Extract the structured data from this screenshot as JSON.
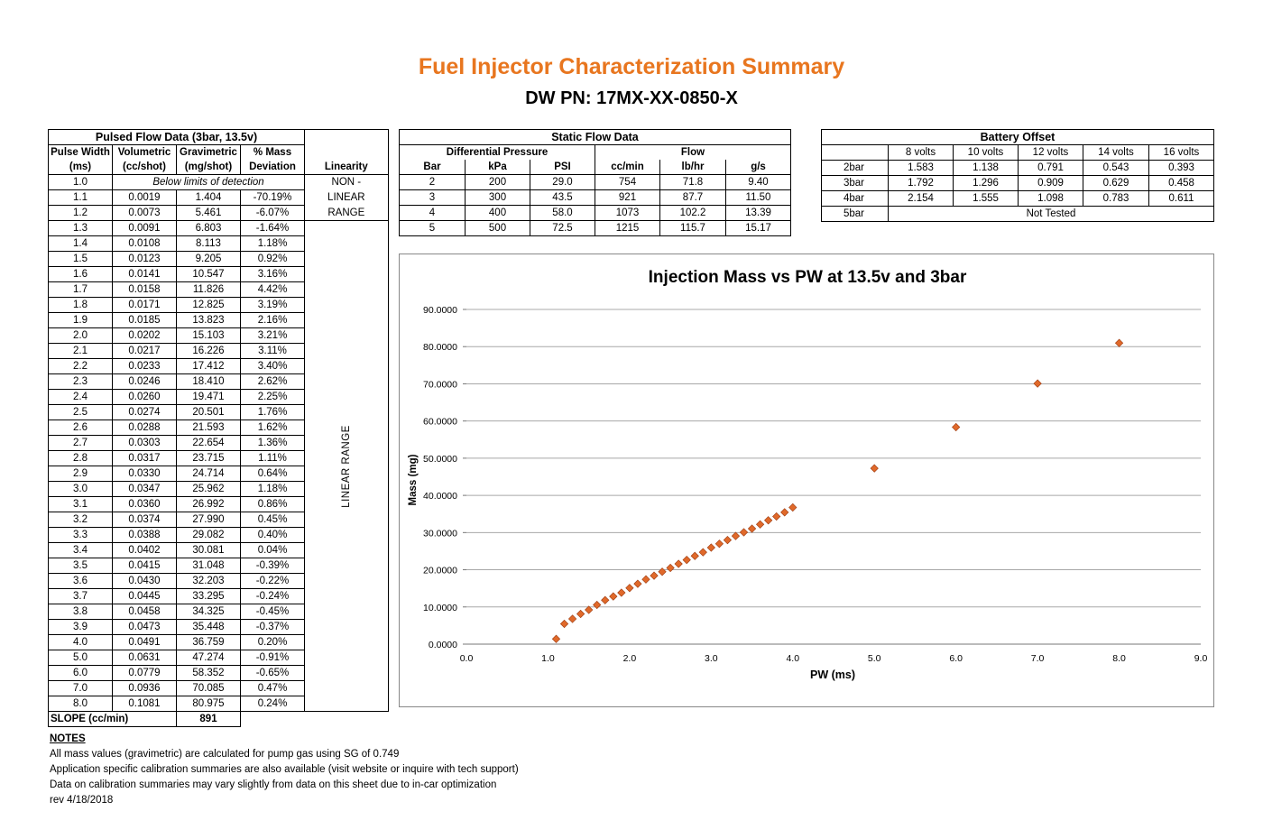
{
  "header": {
    "title": "Fuel Injector Characterization Summary",
    "title_color": "#E8761F",
    "subtitle": "DW PN: 17MX-XX-0850-X"
  },
  "pulsed": {
    "title": "Pulsed Flow Data (3bar, 13.5v)",
    "col1a": "Pulse Width",
    "col1b": "(ms)",
    "col2a": "Volumetric",
    "col2b": "(cc/shot)",
    "col3a": "Gravimetric",
    "col3b": "(mg/shot)",
    "col4a": "% Mass",
    "col4b": "Deviation",
    "col5": "Linearity",
    "first_pw": "1.0",
    "below_limits": "Below limits of detection",
    "nonlinear_1": "NON -",
    "nonlinear_2": "LINEAR",
    "nonlinear_3": "RANGE",
    "linear_range": "LINEAR RANGE",
    "rows": [
      {
        "pw": "1.1",
        "vol": "0.0019",
        "grav": "1.404",
        "dev": "-70.19%"
      },
      {
        "pw": "1.2",
        "vol": "0.0073",
        "grav": "5.461",
        "dev": "-6.07%"
      },
      {
        "pw": "1.3",
        "vol": "0.0091",
        "grav": "6.803",
        "dev": "-1.64%"
      },
      {
        "pw": "1.4",
        "vol": "0.0108",
        "grav": "8.113",
        "dev": "1.18%"
      },
      {
        "pw": "1.5",
        "vol": "0.0123",
        "grav": "9.205",
        "dev": "0.92%"
      },
      {
        "pw": "1.6",
        "vol": "0.0141",
        "grav": "10.547",
        "dev": "3.16%"
      },
      {
        "pw": "1.7",
        "vol": "0.0158",
        "grav": "11.826",
        "dev": "4.42%"
      },
      {
        "pw": "1.8",
        "vol": "0.0171",
        "grav": "12.825",
        "dev": "3.19%"
      },
      {
        "pw": "1.9",
        "vol": "0.0185",
        "grav": "13.823",
        "dev": "2.16%"
      },
      {
        "pw": "2.0",
        "vol": "0.0202",
        "grav": "15.103",
        "dev": "3.21%"
      },
      {
        "pw": "2.1",
        "vol": "0.0217",
        "grav": "16.226",
        "dev": "3.11%"
      },
      {
        "pw": "2.2",
        "vol": "0.0233",
        "grav": "17.412",
        "dev": "3.40%"
      },
      {
        "pw": "2.3",
        "vol": "0.0246",
        "grav": "18.410",
        "dev": "2.62%"
      },
      {
        "pw": "2.4",
        "vol": "0.0260",
        "grav": "19.471",
        "dev": "2.25%"
      },
      {
        "pw": "2.5",
        "vol": "0.0274",
        "grav": "20.501",
        "dev": "1.76%"
      },
      {
        "pw": "2.6",
        "vol": "0.0288",
        "grav": "21.593",
        "dev": "1.62%"
      },
      {
        "pw": "2.7",
        "vol": "0.0303",
        "grav": "22.654",
        "dev": "1.36%"
      },
      {
        "pw": "2.8",
        "vol": "0.0317",
        "grav": "23.715",
        "dev": "1.11%"
      },
      {
        "pw": "2.9",
        "vol": "0.0330",
        "grav": "24.714",
        "dev": "0.64%"
      },
      {
        "pw": "3.0",
        "vol": "0.0347",
        "grav": "25.962",
        "dev": "1.18%"
      },
      {
        "pw": "3.1",
        "vol": "0.0360",
        "grav": "26.992",
        "dev": "0.86%"
      },
      {
        "pw": "3.2",
        "vol": "0.0374",
        "grav": "27.990",
        "dev": "0.45%"
      },
      {
        "pw": "3.3",
        "vol": "0.0388",
        "grav": "29.082",
        "dev": "0.40%"
      },
      {
        "pw": "3.4",
        "vol": "0.0402",
        "grav": "30.081",
        "dev": "0.04%"
      },
      {
        "pw": "3.5",
        "vol": "0.0415",
        "grav": "31.048",
        "dev": "-0.39%"
      },
      {
        "pw": "3.6",
        "vol": "0.0430",
        "grav": "32.203",
        "dev": "-0.22%"
      },
      {
        "pw": "3.7",
        "vol": "0.0445",
        "grav": "33.295",
        "dev": "-0.24%"
      },
      {
        "pw": "3.8",
        "vol": "0.0458",
        "grav": "34.325",
        "dev": "-0.45%"
      },
      {
        "pw": "3.9",
        "vol": "0.0473",
        "grav": "35.448",
        "dev": "-0.37%"
      },
      {
        "pw": "4.0",
        "vol": "0.0491",
        "grav": "36.759",
        "dev": "0.20%"
      },
      {
        "pw": "5.0",
        "vol": "0.0631",
        "grav": "47.274",
        "dev": "-0.91%"
      },
      {
        "pw": "6.0",
        "vol": "0.0779",
        "grav": "58.352",
        "dev": "-0.65%"
      },
      {
        "pw": "7.0",
        "vol": "0.0936",
        "grav": "70.085",
        "dev": "0.47%"
      },
      {
        "pw": "8.0",
        "vol": "0.1081",
        "grav": "80.975",
        "dev": "0.24%"
      }
    ],
    "slope_label": "SLOPE (cc/min)",
    "slope_value": "891"
  },
  "static": {
    "title": "Static Flow Data",
    "dp_header": "Differential Pressure",
    "flow_header": "Flow",
    "cols": [
      "Bar",
      "kPa",
      "PSI",
      "cc/min",
      "lb/hr",
      "g/s"
    ],
    "rows": [
      [
        "2",
        "200",
        "29.0",
        "754",
        "71.8",
        "9.40"
      ],
      [
        "3",
        "300",
        "43.5",
        "921",
        "87.7",
        "11.50"
      ],
      [
        "4",
        "400",
        "58.0",
        "1073",
        "102.2",
        "13.39"
      ],
      [
        "5",
        "500",
        "72.5",
        "1215",
        "115.7",
        "15.17"
      ]
    ]
  },
  "battery": {
    "title": "Battery Offset",
    "cols": [
      "8 volts",
      "10 volts",
      "12 volts",
      "14 volts",
      "16 volts"
    ],
    "rows": [
      {
        "label": "2bar",
        "vals": [
          "1.583",
          "1.138",
          "0.791",
          "0.543",
          "0.393"
        ]
      },
      {
        "label": "3bar",
        "vals": [
          "1.792",
          "1.296",
          "0.909",
          "0.629",
          "0.458"
        ]
      },
      {
        "label": "4bar",
        "vals": [
          "2.154",
          "1.555",
          "1.098",
          "0.783",
          "0.611"
        ]
      }
    ],
    "last_label": "5bar",
    "not_tested": "Not Tested"
  },
  "notes": {
    "heading": "NOTES",
    "line1": "All mass values (gravimetric) are calculated for pump gas using SG of 0.749",
    "line2": "Application specific calibration summaries are also available (visit website or inquire with tech support)",
    "line3": "Data on calibration summaries may vary slightly from data on this sheet due to in-car optimization",
    "line4": "rev 4/18/2018"
  },
  "chart_data": {
    "type": "scatter",
    "title": "Injection Mass vs PW at 13.5v and 3bar",
    "xlabel": "PW (ms)",
    "ylabel": "Mass (mg)",
    "xlim": [
      0,
      9
    ],
    "ylim": [
      0,
      90
    ],
    "x_ticks": [
      "0.0",
      "1.0",
      "2.0",
      "3.0",
      "4.0",
      "5.0",
      "6.0",
      "7.0",
      "8.0",
      "9.0"
    ],
    "y_ticks": [
      "0.0000",
      "10.0000",
      "20.0000",
      "30.0000",
      "40.0000",
      "50.0000",
      "60.0000",
      "70.0000",
      "80.0000",
      "90.0000"
    ],
    "grid": "horizontal",
    "marker_color": "#E0692A",
    "marker_edge": "#9B3A10",
    "x": [
      1.1,
      1.2,
      1.3,
      1.4,
      1.5,
      1.6,
      1.7,
      1.8,
      1.9,
      2.0,
      2.1,
      2.2,
      2.3,
      2.4,
      2.5,
      2.6,
      2.7,
      2.8,
      2.9,
      3.0,
      3.1,
      3.2,
      3.3,
      3.4,
      3.5,
      3.6,
      3.7,
      3.8,
      3.9,
      4.0,
      5.0,
      6.0,
      7.0,
      8.0
    ],
    "y": [
      1.404,
      5.461,
      6.803,
      8.113,
      9.205,
      10.547,
      11.826,
      12.825,
      13.823,
      15.103,
      16.226,
      17.412,
      18.41,
      19.471,
      20.501,
      21.593,
      22.654,
      23.715,
      24.714,
      25.962,
      26.992,
      27.99,
      29.082,
      30.081,
      31.048,
      32.203,
      33.295,
      34.325,
      35.448,
      36.759,
      47.274,
      58.352,
      70.085,
      80.975
    ]
  }
}
